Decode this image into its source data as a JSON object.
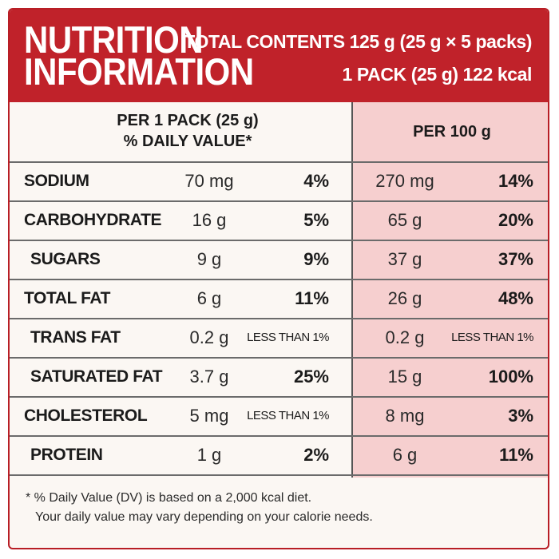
{
  "header": {
    "title_line1": "NUTRITION",
    "title_line2": "INFORMATION",
    "total_contents": "TOTAL CONTENTS 125 g (25 g × 5 packs)",
    "per_pack_energy": "1 PACK (25 g) 122 kcal"
  },
  "columns": {
    "left_line1": "PER 1 PACK (25 g)",
    "left_line2": "% DAILY VALUE*",
    "right": "PER 100 g"
  },
  "rows": [
    {
      "name": "SODIUM",
      "pack_amount": "70 mg",
      "pack_dv": "4%",
      "per100_amount": "270 mg",
      "per100_dv": "14%"
    },
    {
      "name": "CARBOHYDRATE",
      "pack_amount": "16 g",
      "pack_dv": "5%",
      "per100_amount": "65 g",
      "per100_dv": "20%"
    },
    {
      "name": "SUGARS",
      "pack_amount": "9 g",
      "pack_dv": "9%",
      "per100_amount": "37 g",
      "per100_dv": "37%"
    },
    {
      "name": "TOTAL FAT",
      "pack_amount": "6 g",
      "pack_dv": "11%",
      "per100_amount": "26 g",
      "per100_dv": "48%"
    },
    {
      "name": "TRANS FAT",
      "pack_amount": "0.2 g",
      "pack_dv": "LESS THAN 1%",
      "per100_amount": "0.2 g",
      "per100_dv": "LESS THAN 1%"
    },
    {
      "name": "SATURATED FAT",
      "pack_amount": "3.7 g",
      "pack_dv": "25%",
      "per100_amount": "15 g",
      "per100_dv": "100%"
    },
    {
      "name": "CHOLESTEROL",
      "pack_amount": "5 mg",
      "pack_dv": "LESS THAN 1%",
      "per100_amount": "8 mg",
      "per100_dv": "3%"
    },
    {
      "name": "PROTEIN",
      "pack_amount": "1 g",
      "pack_dv": "2%",
      "per100_amount": "6 g",
      "per100_dv": "11%"
    }
  ],
  "footnote": {
    "line1": "* % Daily Value (DV) is based on a 2,000 kcal diet.",
    "line2": "Your daily value may vary depending on your calorie needs."
  },
  "colors": {
    "header_red": "#c0222a",
    "right_column_pink": "#f6cfcf",
    "panel_background": "#fbf7f3"
  }
}
